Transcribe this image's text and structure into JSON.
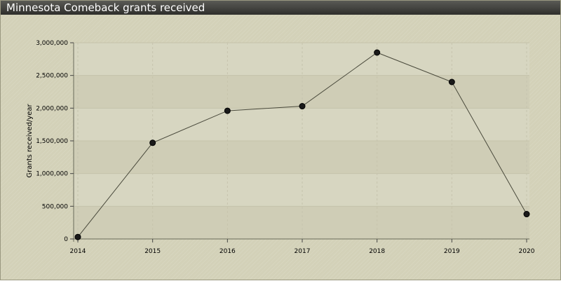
{
  "header": {
    "title": "Minnesota Comeback grants received"
  },
  "colors": {
    "background": "#d3d1b8",
    "plot_band_light": "#d7d6c1",
    "plot_band_dark": "#cfcdb6",
    "title_bar": "#3c3c39",
    "line": "#4a4a3c",
    "marker": "#1a1a1a"
  },
  "chart_data": {
    "type": "line",
    "title": "Minnesota Comeback grants received",
    "xlabel": "",
    "ylabel": "Grants received/year",
    "x": [
      2014,
      2015,
      2016,
      2017,
      2018,
      2019,
      2020
    ],
    "x_tick_labels": [
      "2014",
      "2015",
      "2016",
      "2017",
      "2018",
      "2019",
      "2020"
    ],
    "series": [
      {
        "values": [
          30000,
          1470000,
          1960000,
          2030000,
          2850000,
          2400000,
          380000
        ]
      }
    ],
    "ylim": [
      0,
      3000000
    ],
    "y_ticks": [
      0,
      500000,
      1000000,
      1500000,
      2000000,
      2500000,
      3000000
    ],
    "y_tick_labels": [
      "0",
      "500,000",
      "1,000,000",
      "1,500,000",
      "2,000,000",
      "2,500,000",
      "3,000,000"
    ],
    "grid": true,
    "legend": "none"
  }
}
